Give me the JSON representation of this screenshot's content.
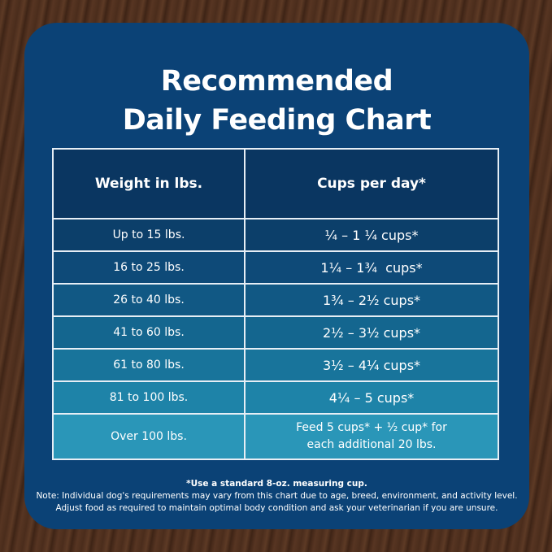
{
  "title": {
    "line1": "Recommended",
    "line2": "Daily Feeding Chart"
  },
  "table": {
    "headers": [
      "Weight in lbs.",
      "Cups per day*"
    ],
    "rows": [
      {
        "weight": "Up to 15 lbs.",
        "cups": "¼ – 1 ¼ cups*"
      },
      {
        "weight": "16 to 25 lbs.",
        "cups": "1¼ – 1¾  cups*"
      },
      {
        "weight": "26 to 40 lbs.",
        "cups": "1¾ – 2½ cups*"
      },
      {
        "weight": "41 to 60 lbs.",
        "cups": "2½ – 3½ cups*"
      },
      {
        "weight": "61 to 80 lbs.",
        "cups": "3½ – 4¼ cups*"
      },
      {
        "weight": "81 to 100 lbs.",
        "cups": "4¼ – 5 cups*"
      },
      {
        "weight": "Over 100 lbs.",
        "cups": "Feed 5 cups* + ½ cup* for",
        "cups2": "each additional 20 lbs."
      }
    ],
    "row_colors": [
      "#0c3f6a",
      "#0e4a78",
      "#115884",
      "#14668f",
      "#18749b",
      "#1e83a8",
      "#2a96b8"
    ]
  },
  "notes": {
    "footnote": "*Use a standard 8-oz. measuring cup.",
    "note1": "Note: Individual dog's requirements may vary from this chart due to age, breed, environment, and activity level.",
    "note2": "Adjust food as required to maintain optimal body condition and ask your veterinarian if you are unsure."
  }
}
